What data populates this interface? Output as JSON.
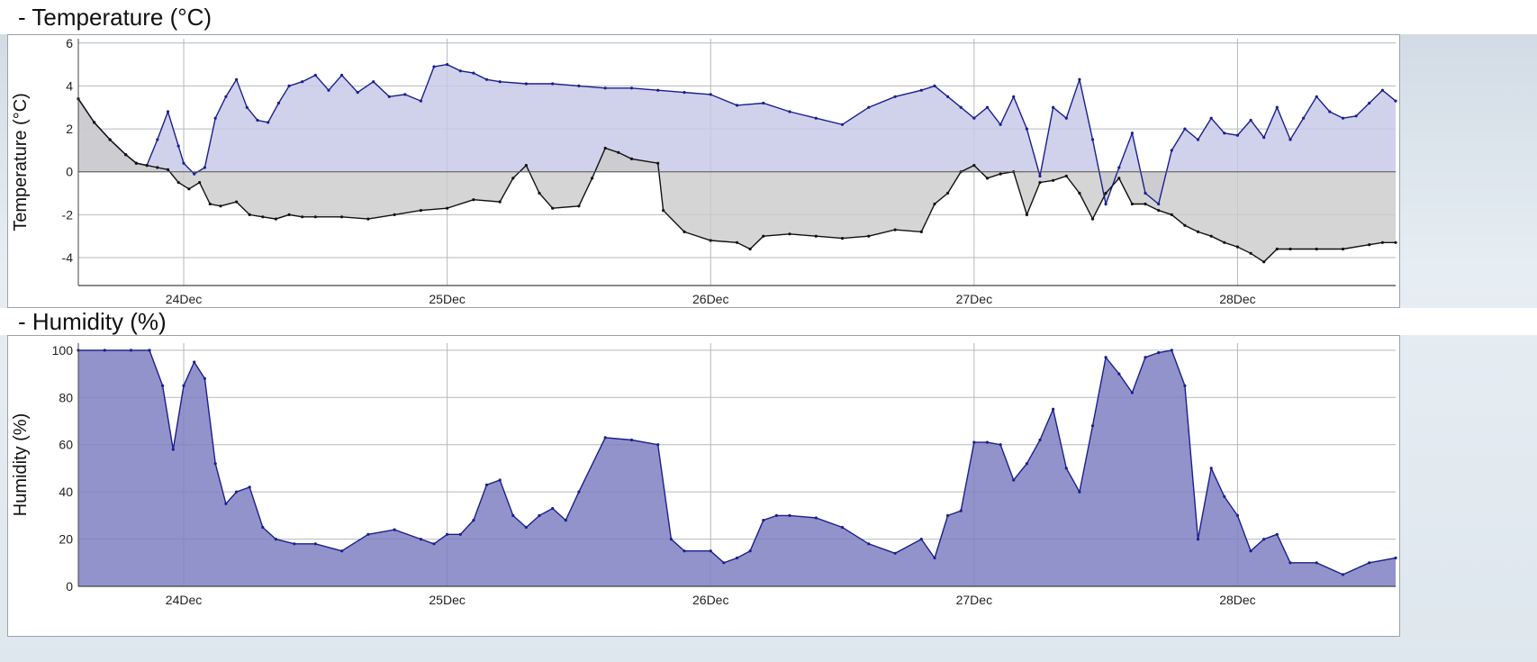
{
  "chart_data": [
    {
      "type": "area",
      "title": "- Temperature (°C)",
      "ylabel": "Temperature (°C)",
      "xlabel": "",
      "ylim": [
        -5.3,
        6.2
      ],
      "yticks": [
        -4,
        -2,
        0,
        2,
        4,
        6
      ],
      "x_range_days": [
        23.6,
        28.6
      ],
      "x_ticks": [
        {
          "x": 24,
          "label": "24Dec"
        },
        {
          "x": 25,
          "label": "25Dec"
        },
        {
          "x": 26,
          "label": "26Dec"
        },
        {
          "x": 27,
          "label": "27Dec"
        },
        {
          "x": 28,
          "label": "28Dec"
        }
      ],
      "grid": true,
      "series": [
        {
          "name": "",
          "color": "#1a1f8c",
          "fill": "#c8c9e8",
          "x": [
            23.6,
            23.66,
            23.72,
            23.78,
            23.82,
            23.86,
            23.9,
            23.94,
            23.98,
            24.0,
            24.04,
            24.08,
            24.12,
            24.16,
            24.2,
            24.24,
            24.28,
            24.32,
            24.36,
            24.4,
            24.45,
            24.5,
            24.55,
            24.6,
            24.66,
            24.72,
            24.78,
            24.84,
            24.9,
            24.95,
            25.0,
            25.05,
            25.1,
            25.15,
            25.2,
            25.3,
            25.4,
            25.5,
            25.6,
            25.7,
            25.8,
            25.9,
            26.0,
            26.1,
            26.2,
            26.3,
            26.4,
            26.5,
            26.6,
            26.7,
            26.8,
            26.85,
            26.9,
            26.95,
            27.0,
            27.05,
            27.1,
            27.15,
            27.2,
            27.25,
            27.3,
            27.35,
            27.4,
            27.45,
            27.5,
            27.55,
            27.6,
            27.65,
            27.7,
            27.75,
            27.8,
            27.85,
            27.9,
            27.95,
            28.0,
            28.05,
            28.1,
            28.15,
            28.2,
            28.25,
            28.3,
            28.35,
            28.4,
            28.45,
            28.5,
            28.55,
            28.6
          ],
          "y": [
            3.4,
            2.3,
            1.5,
            0.8,
            0.4,
            0.3,
            1.5,
            2.8,
            1.2,
            0.4,
            -0.1,
            0.2,
            2.5,
            3.5,
            4.3,
            3.0,
            2.4,
            2.3,
            3.2,
            4.0,
            4.2,
            4.5,
            3.8,
            4.5,
            3.7,
            4.2,
            3.5,
            3.6,
            3.3,
            4.9,
            5.0,
            4.7,
            4.6,
            4.3,
            4.2,
            4.1,
            4.1,
            4.0,
            3.9,
            3.9,
            3.8,
            3.7,
            3.6,
            3.1,
            3.2,
            2.8,
            2.5,
            2.2,
            3.0,
            3.5,
            3.8,
            4.0,
            3.5,
            3.0,
            2.5,
            3.0,
            2.2,
            3.5,
            2.0,
            -0.2,
            3.0,
            2.5,
            4.3,
            1.5,
            -1.5,
            0.2,
            1.8,
            -1.0,
            -1.5,
            1.0,
            2.0,
            1.5,
            2.5,
            1.8,
            1.7,
            2.4,
            1.6,
            3.0,
            1.5,
            2.5,
            3.5,
            2.8,
            2.5,
            2.6,
            3.2,
            3.8,
            3.3
          ]
        },
        {
          "name": "",
          "color": "#111111",
          "fill": "#cbcbcb",
          "x": [
            23.6,
            23.66,
            23.72,
            23.78,
            23.82,
            23.86,
            23.9,
            23.94,
            23.98,
            24.02,
            24.06,
            24.1,
            24.14,
            24.2,
            24.25,
            24.3,
            24.35,
            24.4,
            24.45,
            24.5,
            24.6,
            24.7,
            24.8,
            24.9,
            25.0,
            25.1,
            25.2,
            25.25,
            25.3,
            25.35,
            25.4,
            25.5,
            25.55,
            25.6,
            25.65,
            25.7,
            25.8,
            25.82,
            25.9,
            26.0,
            26.1,
            26.15,
            26.2,
            26.3,
            26.4,
            26.5,
            26.6,
            26.7,
            26.8,
            26.85,
            26.9,
            26.95,
            27.0,
            27.05,
            27.1,
            27.15,
            27.2,
            27.25,
            27.3,
            27.35,
            27.4,
            27.45,
            27.5,
            27.55,
            27.6,
            27.65,
            27.7,
            27.75,
            27.8,
            27.85,
            27.9,
            27.95,
            28.0,
            28.05,
            28.1,
            28.15,
            28.2,
            28.3,
            28.4,
            28.5,
            28.55,
            28.6
          ],
          "y": [
            3.4,
            2.3,
            1.5,
            0.8,
            0.4,
            0.3,
            0.2,
            0.1,
            -0.5,
            -0.8,
            -0.5,
            -1.5,
            -1.6,
            -1.4,
            -2.0,
            -2.1,
            -2.2,
            -2.0,
            -2.1,
            -2.1,
            -2.1,
            -2.2,
            -2.0,
            -1.8,
            -1.7,
            -1.3,
            -1.4,
            -0.3,
            0.3,
            -1.0,
            -1.7,
            -1.6,
            -0.3,
            1.1,
            0.9,
            0.6,
            0.4,
            -1.8,
            -2.8,
            -3.2,
            -3.3,
            -3.6,
            -3.0,
            -2.9,
            -3.0,
            -3.1,
            -3.0,
            -2.7,
            -2.8,
            -1.5,
            -1.0,
            0.0,
            0.3,
            -0.3,
            -0.1,
            0.0,
            -2.0,
            -0.5,
            -0.4,
            -0.2,
            -1.0,
            -2.2,
            -1.0,
            -0.3,
            -1.5,
            -1.5,
            -1.8,
            -2.0,
            -2.5,
            -2.8,
            -3.0,
            -3.3,
            -3.5,
            -3.8,
            -4.2,
            -3.6,
            -3.6,
            -3.6,
            -3.6,
            -3.4,
            -3.3,
            -3.3
          ]
        }
      ]
    },
    {
      "type": "area",
      "title": "- Humidity (%)",
      "ylabel": "Humidity (%)",
      "xlabel": "",
      "ylim": [
        0,
        103
      ],
      "yticks": [
        0,
        20,
        40,
        60,
        80,
        100
      ],
      "x_range_days": [
        23.6,
        28.6
      ],
      "x_ticks": [
        {
          "x": 24,
          "label": "24Dec"
        },
        {
          "x": 25,
          "label": "25Dec"
        },
        {
          "x": 26,
          "label": "26Dec"
        },
        {
          "x": 27,
          "label": "27Dec"
        },
        {
          "x": 28,
          "label": "28Dec"
        }
      ],
      "grid": true,
      "series": [
        {
          "name": "",
          "color": "#1a1f8c",
          "fill": "#7f80c2",
          "x": [
            23.6,
            23.7,
            23.8,
            23.87,
            23.92,
            23.96,
            24.0,
            24.04,
            24.08,
            24.12,
            24.16,
            24.2,
            24.25,
            24.3,
            24.35,
            24.42,
            24.5,
            24.6,
            24.7,
            24.8,
            24.9,
            24.95,
            25.0,
            25.05,
            25.1,
            25.15,
            25.2,
            25.25,
            25.3,
            25.35,
            25.4,
            25.45,
            25.5,
            25.6,
            25.7,
            25.8,
            25.85,
            25.9,
            26.0,
            26.05,
            26.1,
            26.15,
            26.2,
            26.25,
            26.3,
            26.4,
            26.5,
            26.6,
            26.7,
            26.8,
            26.85,
            26.9,
            26.95,
            27.0,
            27.05,
            27.1,
            27.15,
            27.2,
            27.25,
            27.3,
            27.35,
            27.4,
            27.45,
            27.5,
            27.55,
            27.6,
            27.65,
            27.7,
            27.75,
            27.8,
            27.85,
            27.9,
            27.95,
            28.0,
            28.05,
            28.1,
            28.15,
            28.2,
            28.3,
            28.4,
            28.5,
            28.6
          ],
          "y": [
            100,
            100,
            100,
            100,
            85,
            58,
            85,
            95,
            88,
            52,
            35,
            40,
            42,
            25,
            20,
            18,
            18,
            15,
            22,
            24,
            20,
            18,
            22,
            22,
            28,
            43,
            45,
            30,
            25,
            30,
            33,
            28,
            40,
            63,
            62,
            60,
            20,
            15,
            15,
            10,
            12,
            15,
            28,
            30,
            30,
            29,
            25,
            18,
            14,
            20,
            12,
            30,
            32,
            61,
            61,
            60,
            45,
            52,
            62,
            75,
            50,
            40,
            68,
            97,
            90,
            82,
            97,
            99,
            100,
            85,
            20,
            50,
            38,
            30,
            15,
            20,
            22,
            10,
            10,
            5,
            10,
            12
          ]
        }
      ]
    }
  ]
}
